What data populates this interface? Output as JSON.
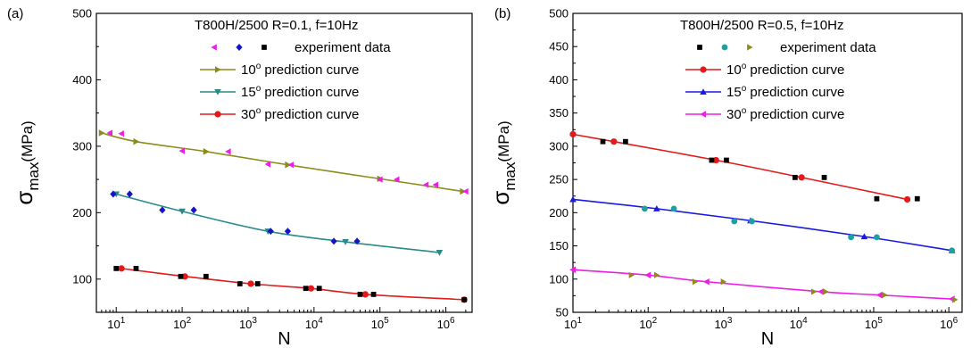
{
  "chart_data": [
    {
      "type": "scatter",
      "panel_label": "(a)",
      "title": "T800H/2500  R=0.1, f=10Hz",
      "xlabel": "N",
      "ylabel": {
        "base": "σ",
        "sub": "max",
        "unit": "(MPa)"
      },
      "xscale": "log",
      "xlim": [
        5,
        2500000
      ],
      "ylim": [
        50,
        500
      ],
      "yticks": [
        100,
        200,
        300,
        400,
        500
      ],
      "xticks": [
        {
          "value": 10,
          "base": "10",
          "exp": "1"
        },
        {
          "value": 100,
          "base": "10",
          "exp": "2"
        },
        {
          "value": 1000,
          "base": "10",
          "exp": "3"
        },
        {
          "value": 10000,
          "base": "10",
          "exp": "4"
        },
        {
          "value": 100000,
          "base": "10",
          "exp": "5"
        },
        {
          "value": 1000000,
          "base": "10",
          "exp": "6"
        }
      ],
      "legend_position": "top-right",
      "experiment_label": "experiment data",
      "experiment": [
        {
          "marker": "triangle-left",
          "color": "#ee1ee6",
          "points": [
            [
              8,
              320
            ],
            [
              12,
              319
            ],
            [
              100,
              293
            ],
            [
              500,
              292
            ],
            [
              2000,
              273
            ],
            [
              4500,
              272
            ],
            [
              100000,
              250
            ],
            [
              180000,
              250
            ],
            [
              500000,
              242
            ],
            [
              700000,
              242
            ],
            [
              2000000,
              232
            ]
          ]
        },
        {
          "marker": "diamond",
          "color": "#1515c8",
          "points": [
            [
              9,
              228
            ],
            [
              16,
              228
            ],
            [
              50,
              204
            ],
            [
              150,
              204
            ],
            [
              2200,
              172
            ],
            [
              4000,
              172
            ],
            [
              20000,
              157
            ],
            [
              45000,
              157
            ]
          ]
        },
        {
          "marker": "square",
          "color": "#000000",
          "points": [
            [
              10,
              116
            ],
            [
              20,
              116
            ],
            [
              95,
              104
            ],
            [
              230,
              104
            ],
            [
              750,
              93
            ],
            [
              1400,
              93
            ],
            [
              7500,
              86
            ],
            [
              12000,
              86
            ],
            [
              50000,
              77
            ],
            [
              80000,
              77
            ],
            [
              1900000,
              69
            ]
          ]
        }
      ],
      "series": [
        {
          "name": "10° prediction curve",
          "label_base": "10",
          "label_rest": " prediction curve",
          "color": "#8c8c1a",
          "marker": "triangle-right",
          "points": [
            [
              6,
              320
            ],
            [
              20,
              307
            ],
            [
              230,
              292
            ],
            [
              4000,
              272
            ],
            [
              100000,
              251
            ],
            [
              1800000,
              232
            ]
          ]
        },
        {
          "name": "15° prediction curve",
          "label_base": "15",
          "label_rest": " prediction curve",
          "color": "#2a8a8a",
          "marker": "triangle-down",
          "points": [
            [
              10,
              228
            ],
            [
              100,
              202
            ],
            [
              2000,
              172
            ],
            [
              30000,
              156
            ],
            [
              800000,
              140
            ]
          ]
        },
        {
          "name": "30° prediction curve",
          "label_base": "30",
          "label_rest": " prediction curve",
          "color": "#e41a1a",
          "marker": "circle",
          "points": [
            [
              12,
              116
            ],
            [
              110,
              104
            ],
            [
              1100,
              93
            ],
            [
              9000,
              86
            ],
            [
              60000,
              77
            ],
            [
              1900000,
              69
            ]
          ]
        }
      ]
    },
    {
      "type": "scatter",
      "panel_label": "(b)",
      "title": "T800H/2500  R=0.5, f=10Hz",
      "xlabel": "N",
      "ylabel": {
        "base": "σ",
        "sub": "max",
        "unit": "(MPa)"
      },
      "xscale": "log",
      "xlim": [
        10,
        1500000
      ],
      "ylim": [
        50,
        500
      ],
      "yticks": [
        50,
        100,
        150,
        200,
        250,
        300,
        350,
        400,
        450,
        500
      ],
      "xticks": [
        {
          "value": 10,
          "base": "10",
          "exp": "1"
        },
        {
          "value": 100,
          "base": "10",
          "exp": "2"
        },
        {
          "value": 1000,
          "base": "10",
          "exp": "3"
        },
        {
          "value": 10000,
          "base": "10",
          "exp": "4"
        },
        {
          "value": 100000,
          "base": "10",
          "exp": "5"
        },
        {
          "value": 1000000,
          "base": "10",
          "exp": "6"
        }
      ],
      "legend_position": "top-right",
      "experiment_label": "experiment data",
      "experiment": [
        {
          "marker": "square",
          "color": "#000000",
          "points": [
            [
              25,
              307
            ],
            [
              50,
              307
            ],
            [
              700,
              279
            ],
            [
              1100,
              279
            ],
            [
              9000,
              253
            ],
            [
              22000,
              253
            ],
            [
              110000,
              221
            ],
            [
              380000,
              221
            ]
          ]
        },
        {
          "marker": "circle",
          "color": "#1f9f9f",
          "points": [
            [
              90,
              206
            ],
            [
              220,
              206
            ],
            [
              1400,
              187
            ],
            [
              2400,
              187
            ],
            [
              50000,
              163
            ],
            [
              110000,
              163
            ],
            [
              1100000,
              143
            ]
          ]
        },
        {
          "marker": "triangle-right",
          "color": "#8c8c1a",
          "points": [
            [
              60,
              106
            ],
            [
              130,
              106
            ],
            [
              420,
              96
            ],
            [
              1000,
              96
            ],
            [
              16000,
              81
            ],
            [
              23000,
              81
            ],
            [
              140000,
              76
            ],
            [
              1200000,
              69
            ]
          ]
        }
      ],
      "series": [
        {
          "name": "10° prediction curve",
          "label_base": "10",
          "label_rest": " prediction curve",
          "color": "#e41a1a",
          "marker": "circle",
          "points": [
            [
              10,
              318
            ],
            [
              35,
              307
            ],
            [
              800,
              279
            ],
            [
              11000,
              253
            ],
            [
              280000,
              220
            ]
          ]
        },
        {
          "name": "15° prediction curve",
          "label_base": "15",
          "label_rest": " prediction curve",
          "color": "#1a1ae0",
          "marker": "triangle-up",
          "points": [
            [
              10,
              220
            ],
            [
              130,
              206
            ],
            [
              2300,
              188
            ],
            [
              75000,
              164
            ],
            [
              1100000,
              143
            ]
          ]
        },
        {
          "name": "30° prediction curve",
          "label_base": "30",
          "label_rest": " prediction curve",
          "color": "#ee1ee6",
          "marker": "triangle-left",
          "points": [
            [
              10,
              114
            ],
            [
              100,
              106
            ],
            [
              600,
              96
            ],
            [
              20000,
              81
            ],
            [
              120000,
              76
            ],
            [
              1100000,
              70
            ]
          ]
        }
      ]
    }
  ]
}
